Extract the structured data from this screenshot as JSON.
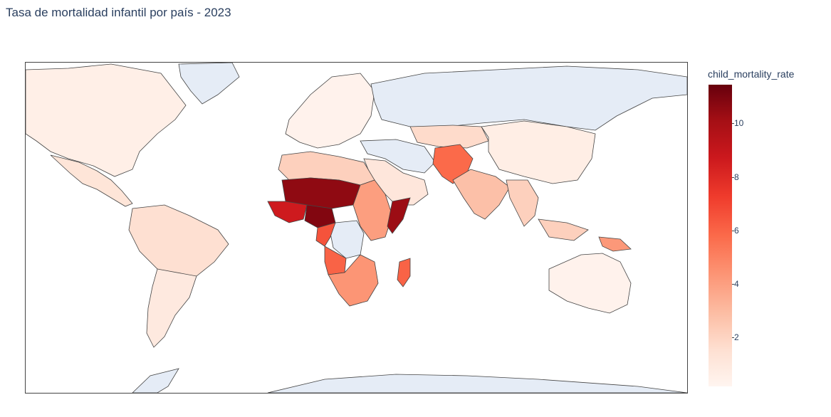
{
  "chart": {
    "title": "Tasa de mortalidad infantil por país - 2023",
    "colorbar_title": "child_mortality_rate",
    "colorscale": "Reds",
    "colors": {
      "min": "#fff5f0",
      "max": "#67000d",
      "no_data": "#e5ecf6",
      "border": "#444444"
    },
    "ticks": [
      "2",
      "4",
      "6",
      "8",
      "10"
    ]
  },
  "chart_data": {
    "type": "choropleth",
    "z_label": "child_mortality_rate",
    "zrange": [
      0.2,
      11.4
    ],
    "regions": [
      {
        "name": "North America",
        "value": 0.6
      },
      {
        "name": "Mexico & Central America",
        "value": 1.3
      },
      {
        "name": "South America (north)",
        "value": 1.6
      },
      {
        "name": "South America (south)",
        "value": 1.0
      },
      {
        "name": "Europe",
        "value": 0.4
      },
      {
        "name": "North Africa",
        "value": 2.2
      },
      {
        "name": "Sahel (Mali/Niger/Chad)",
        "value": 10.5
      },
      {
        "name": "Nigeria",
        "value": 10.8
      },
      {
        "name": "West Africa coast",
        "value": 8.5
      },
      {
        "name": "Somalia",
        "value": 10.2
      },
      {
        "name": "Central Africa",
        "value": 6.5
      },
      {
        "name": "East Africa",
        "value": 4.0
      },
      {
        "name": "Angola",
        "value": 6.0
      },
      {
        "name": "Southern Africa",
        "value": 4.3
      },
      {
        "name": "Madagascar",
        "value": 6.0
      },
      {
        "name": "Middle East",
        "value": 1.2
      },
      {
        "name": "Pakistan/Afghanistan",
        "value": 5.8
      },
      {
        "name": "India",
        "value": 2.8
      },
      {
        "name": "Central Asia",
        "value": 1.8
      },
      {
        "name": "China",
        "value": 0.7
      },
      {
        "name": "Southeast Asia",
        "value": 2.2
      },
      {
        "name": "Papua New Guinea",
        "value": 4.2
      },
      {
        "name": "Australia",
        "value": 0.4
      }
    ],
    "no_data_regions": [
      "Greenland",
      "Russia",
      "Antarctica",
      "DR Congo",
      "Iran/Turkey region"
    ]
  }
}
